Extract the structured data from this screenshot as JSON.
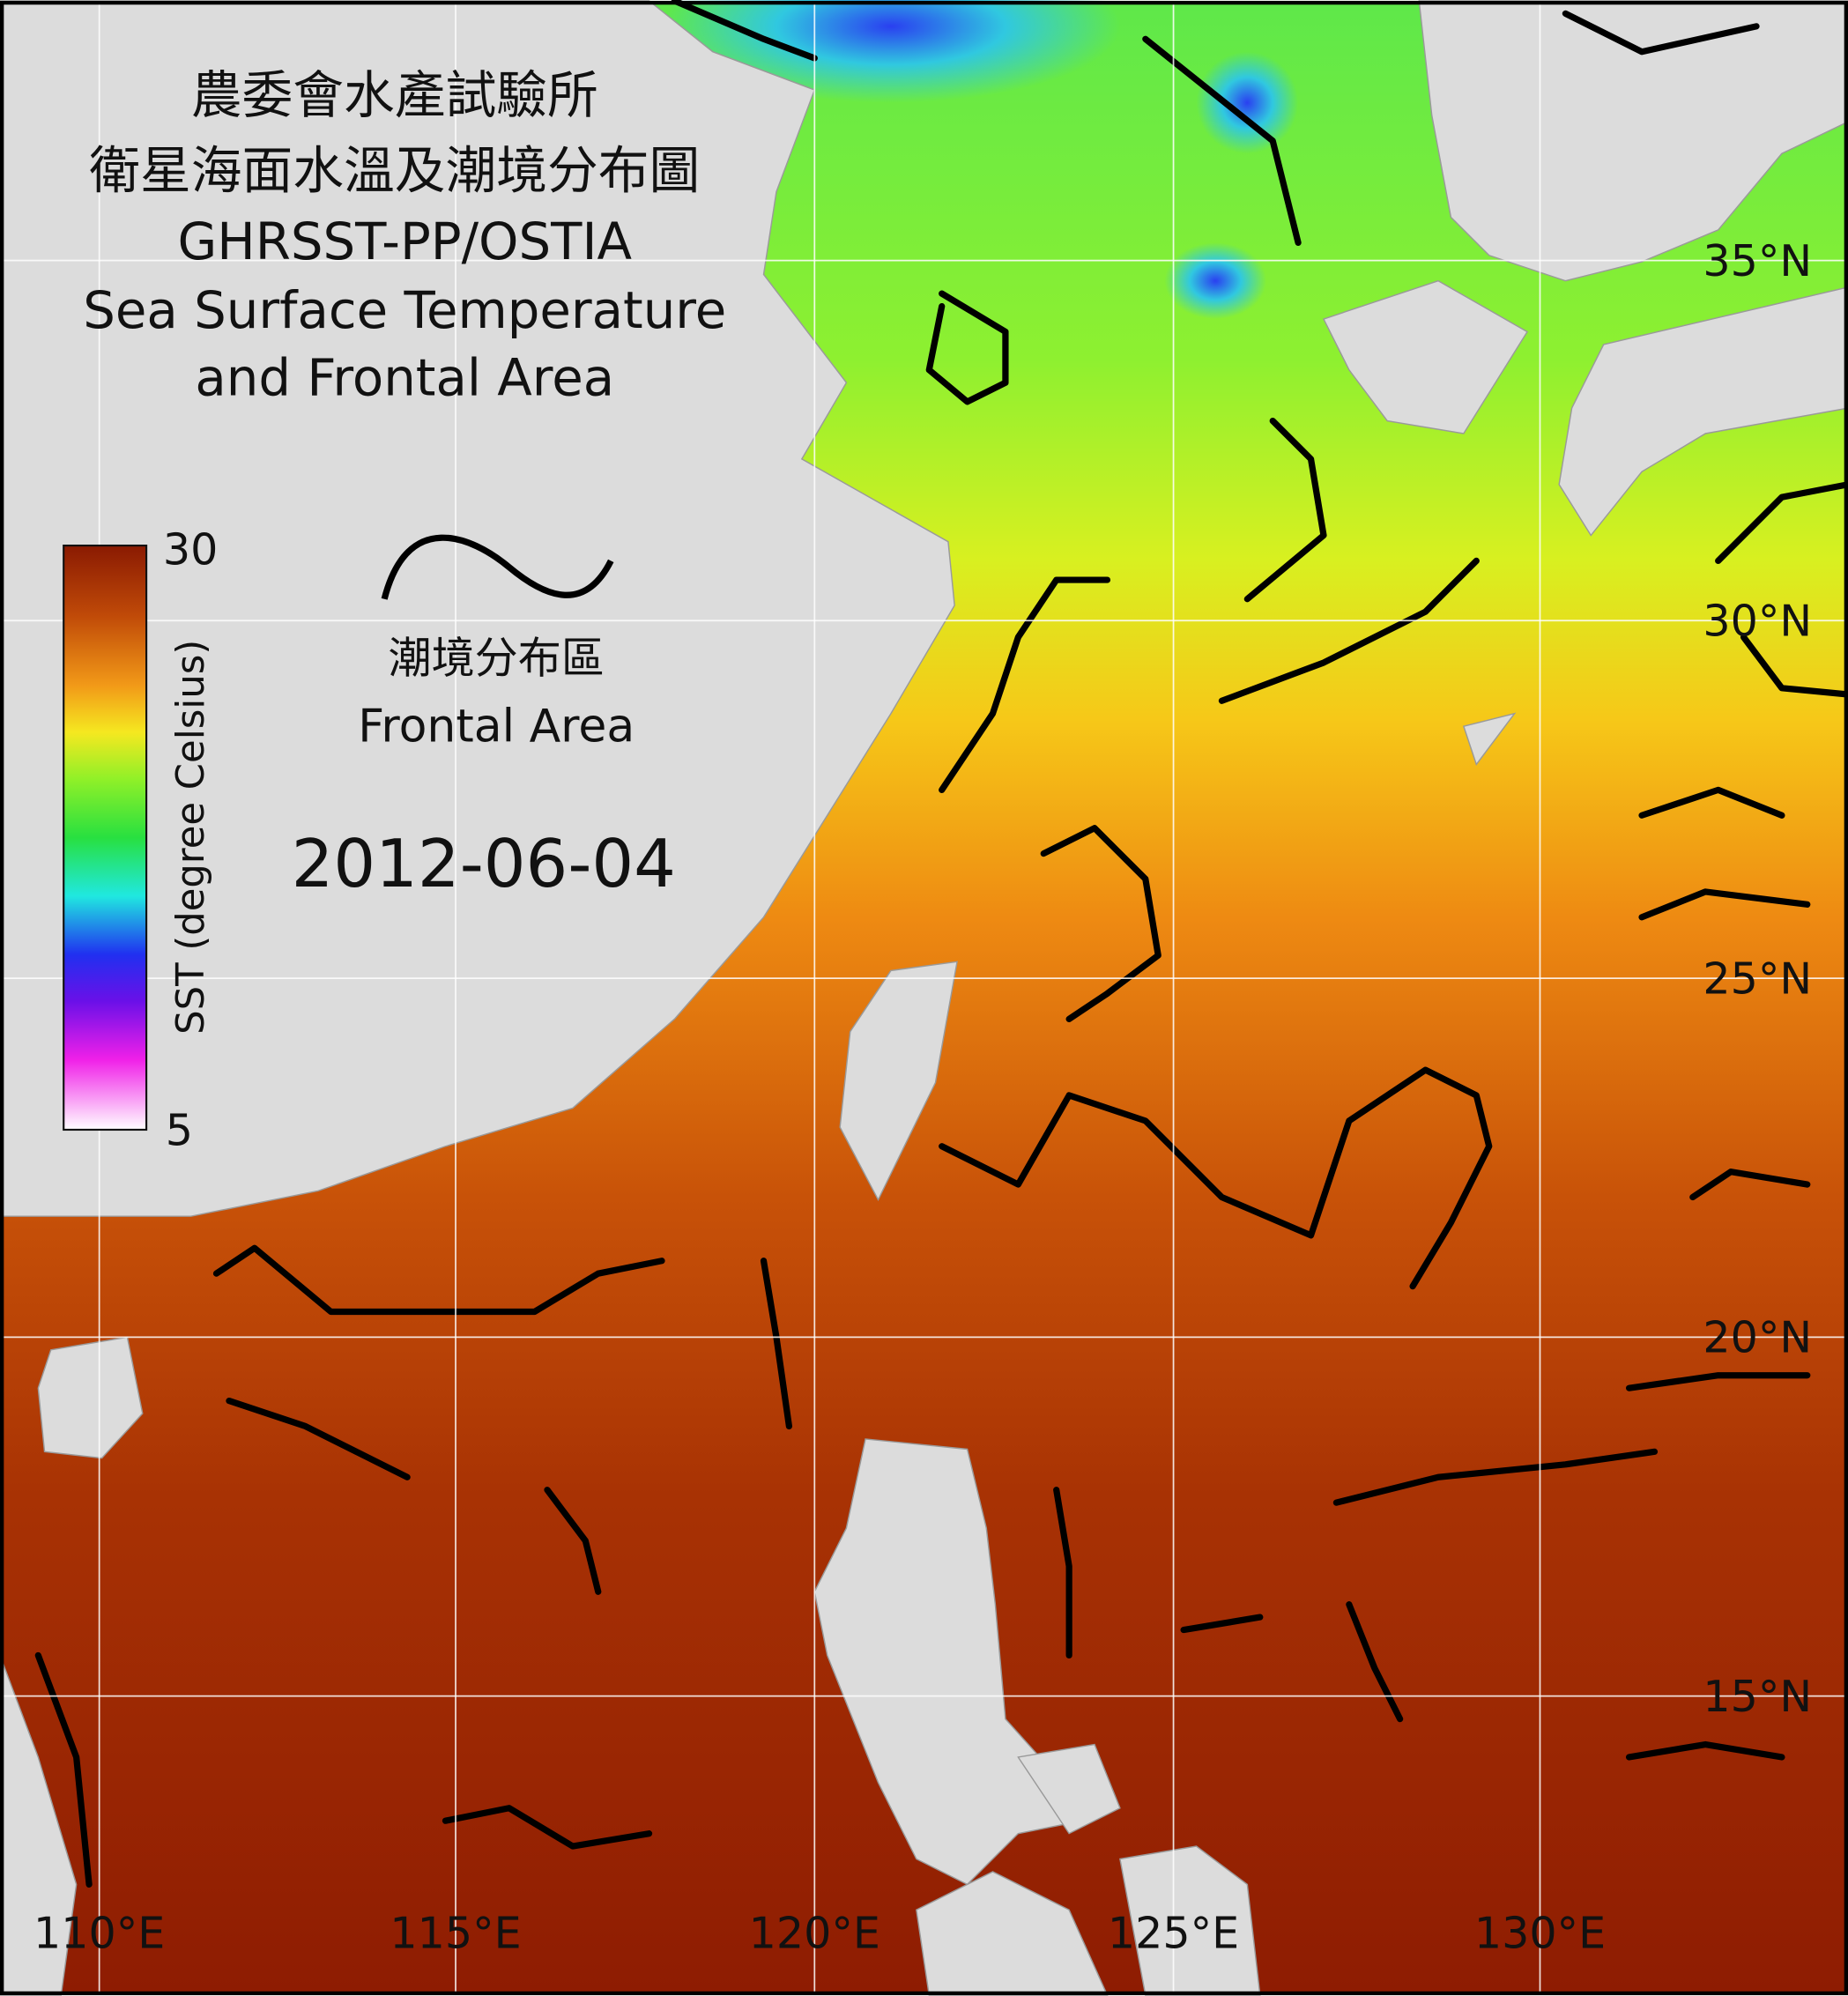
{
  "title": [
    "農委會水產試驗所",
    "衛星海面水溫及潮境分布圖",
    "GHRSST-PP/OSTIA",
    "Sea Surface Temperature",
    "and Frontal Area"
  ],
  "colorbar": {
    "label": "SST (degree Celsius)",
    "max": 30,
    "min": 5
  },
  "legend": {
    "label_zh": "潮境分布區",
    "label_en": "Frontal Area"
  },
  "date": "2012-06-04",
  "latitude_labels": [
    "35°N",
    "30°N",
    "25°N",
    "20°N",
    "15°N"
  ],
  "longitude_labels": [
    "110°E",
    "115°E",
    "120°E",
    "125°E",
    "130°E"
  ]
}
